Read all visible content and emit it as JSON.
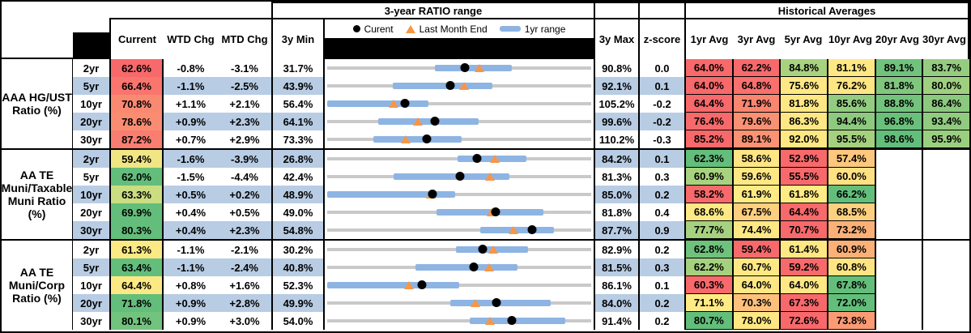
{
  "header": {
    "range_title": "3-year RATIO range",
    "hist_title": "Historical Averages",
    "cols": {
      "current": "Current",
      "wtd": "WTD Chg",
      "mtd": "MTD Chg",
      "min": "3y Min",
      "max": "3y Max",
      "z": "z-score"
    },
    "avg_cols": [
      "1yr Avg",
      "3yr Avg",
      "5yr Avg",
      "10yr Avg",
      "20yr Avg",
      "30yr Avg"
    ],
    "legend": [
      {
        "marker": "current-dot",
        "label": "Curent"
      },
      {
        "marker": "last-month-end-triangle",
        "label": "Last Month End"
      },
      {
        "marker": "one-year-range-bar",
        "label": "1yr range"
      }
    ]
  },
  "palette": {
    "stripe": "#B8CCE4",
    "range_bar": "#8EB4E3",
    "track": "#C9C9C9",
    "triangle": "#F79646",
    "dot": "#000000",
    "heat_red": "#F8696B",
    "heat_yellow": "#FFEB84",
    "heat_green": "#63BE7B"
  },
  "chart_data": {
    "type": "table",
    "title": "3-year RATIO range",
    "groups": [
      {
        "label_lines": [
          "AAA HG/UST",
          "Ratio (%)"
        ],
        "rows": [
          {
            "tenor": "2yr",
            "current": "62.6%",
            "current_color": "#F8696B",
            "wtd_chg": "-0.8%",
            "mtd_chg": "-3.1%",
            "min3y": "31.7%",
            "max3y": "90.8%",
            "z_score": "0.0",
            "striped": false,
            "range_plot": {
              "min": 31.7,
              "max": 90.8,
              "bar_low": 55.8,
              "bar_high": 73.1,
              "current": 62.6,
              "last_month_end": 65.7
            },
            "avgs": [
              {
                "v": "64.0%",
                "c": "#F8696B"
              },
              {
                "v": "62.2%",
                "c": "#F8696B"
              },
              {
                "v": "84.8%",
                "c": "#A9D27F"
              },
              {
                "v": "81.1%",
                "c": "#FFE884"
              },
              {
                "v": "89.1%",
                "c": "#70C27C"
              },
              {
                "v": "83.7%",
                "c": "#95CD80"
              }
            ]
          },
          {
            "tenor": "5yr",
            "current": "66.4%",
            "current_color": "#F9756E",
            "wtd_chg": "-1.1%",
            "mtd_chg": "-2.5%",
            "min3y": "43.9%",
            "max3y": "92.1%",
            "z_score": "0.1",
            "striped": true,
            "range_plot": {
              "min": 43.9,
              "max": 92.1,
              "bar_low": 55.9,
              "bar_high": 74.0,
              "current": 66.4,
              "last_month_end": 68.9
            },
            "avgs": [
              {
                "v": "64.0%",
                "c": "#F8696B"
              },
              {
                "v": "64.8%",
                "c": "#F9706D"
              },
              {
                "v": "75.6%",
                "c": "#FFE884"
              },
              {
                "v": "76.2%",
                "c": "#FEE683"
              },
              {
                "v": "81.8%",
                "c": "#80C77E"
              },
              {
                "v": "80.0%",
                "c": "#9ED080"
              }
            ]
          },
          {
            "tenor": "10yr",
            "current": "70.8%",
            "current_color": "#FA8972",
            "wtd_chg": "+1.1%",
            "mtd_chg": "+2.1%",
            "min3y": "56.4%",
            "max3y": "105.2%",
            "z_score": "-0.2",
            "striped": false,
            "range_plot": {
              "min": 56.4,
              "max": 105.2,
              "bar_low": 56.4,
              "bar_high": 75.1,
              "current": 70.8,
              "last_month_end": 68.7
            },
            "avgs": [
              {
                "v": "64.4%",
                "c": "#F8696B"
              },
              {
                "v": "71.9%",
                "c": "#FA8570"
              },
              {
                "v": "81.8%",
                "c": "#FFE884"
              },
              {
                "v": "85.6%",
                "c": "#92CC80"
              },
              {
                "v": "88.8%",
                "c": "#74C37D"
              },
              {
                "v": "86.4%",
                "c": "#8BC97F"
              }
            ]
          },
          {
            "tenor": "20yr",
            "current": "78.6%",
            "current_color": "#FA8C72",
            "wtd_chg": "+0.9%",
            "mtd_chg": "+2.3%",
            "min3y": "64.1%",
            "max3y": "99.6%",
            "z_score": "-0.2",
            "striped": true,
            "range_plot": {
              "min": 64.1,
              "max": 99.6,
              "bar_low": 71.0,
              "bar_high": 84.5,
              "current": 78.6,
              "last_month_end": 76.3
            },
            "avgs": [
              {
                "v": "76.4%",
                "c": "#F8696B"
              },
              {
                "v": "79.6%",
                "c": "#FA9173"
              },
              {
                "v": "86.3%",
                "c": "#FFE884"
              },
              {
                "v": "94.4%",
                "c": "#8DCA7F"
              },
              {
                "v": "96.8%",
                "c": "#6AC07B"
              },
              {
                "v": "93.4%",
                "c": "#90CB80"
              }
            ]
          },
          {
            "tenor": "30yr",
            "current": "87.2%",
            "current_color": "#F97D70",
            "wtd_chg": "+0.7%",
            "mtd_chg": "+2.9%",
            "min3y": "73.3%",
            "max3y": "110.2%",
            "z_score": "-0.3",
            "striped": false,
            "range_plot": {
              "min": 73.3,
              "max": 110.2,
              "bar_low": 79.7,
              "bar_high": 92.1,
              "current": 87.2,
              "last_month_end": 84.3
            },
            "avgs": [
              {
                "v": "85.2%",
                "c": "#F8696B"
              },
              {
                "v": "89.1%",
                "c": "#FA9273"
              },
              {
                "v": "92.0%",
                "c": "#FFE884"
              },
              {
                "v": "95.5%",
                "c": "#A5D17F"
              },
              {
                "v": "98.6%",
                "c": "#63BE7B"
              },
              {
                "v": "95.9%",
                "c": "#9BCF80"
              }
            ]
          }
        ]
      },
      {
        "label_lines": [
          "AA TE",
          "Muni/Taxable",
          "Muni Ratio",
          "(%)"
        ],
        "rows": [
          {
            "tenor": "2yr",
            "current": "59.4%",
            "current_color": "#F0E683",
            "wtd_chg": "-1.6%",
            "mtd_chg": "-3.9%",
            "min3y": "26.8%",
            "max3y": "84.2%",
            "z_score": "0.1",
            "striped": true,
            "range_plot": {
              "min": 26.8,
              "max": 84.2,
              "bar_low": 55.1,
              "bar_high": 70.2,
              "current": 59.4,
              "last_month_end": 63.3
            },
            "avgs": [
              {
                "v": "62.3%",
                "c": "#63BE7B"
              },
              {
                "v": "58.6%",
                "c": "#FFE583"
              },
              {
                "v": "52.9%",
                "c": "#F8696B"
              },
              {
                "v": "57.4%",
                "c": "#FDC77D"
              },
              {
                "v": "",
                "c": null
              },
              {
                "v": "",
                "c": null
              }
            ]
          },
          {
            "tenor": "5yr",
            "current": "62.0%",
            "current_color": "#63BE7B",
            "wtd_chg": "-1.5%",
            "mtd_chg": "-4.4%",
            "min3y": "42.4%",
            "max3y": "81.3%",
            "z_score": "0.3",
            "striped": false,
            "range_plot": {
              "min": 42.4,
              "max": 81.3,
              "bar_low": 52.2,
              "bar_high": 69.2,
              "current": 62.0,
              "last_month_end": 66.4
            },
            "avgs": [
              {
                "v": "60.9%",
                "c": "#A8D27F"
              },
              {
                "v": "59.6%",
                "c": "#FFE884"
              },
              {
                "v": "55.5%",
                "c": "#F8696B"
              },
              {
                "v": "60.0%",
                "c": "#FEE183"
              },
              {
                "v": "",
                "c": null
              },
              {
                "v": "",
                "c": null
              }
            ]
          },
          {
            "tenor": "10yr",
            "current": "63.3%",
            "current_color": "#CBDD81",
            "wtd_chg": "+0.5%",
            "mtd_chg": "+0.2%",
            "min3y": "48.9%",
            "max3y": "85.0%",
            "z_score": "0.2",
            "striped": true,
            "range_plot": {
              "min": 48.9,
              "max": 85.0,
              "bar_low": 48.9,
              "bar_high": 66.4,
              "current": 63.3,
              "last_month_end": 63.1
            },
            "avgs": [
              {
                "v": "58.2%",
                "c": "#F8696B"
              },
              {
                "v": "61.9%",
                "c": "#FFEB84"
              },
              {
                "v": "61.8%",
                "c": "#FFEB84"
              },
              {
                "v": "66.2%",
                "c": "#63BE7B"
              },
              {
                "v": "",
                "c": null
              },
              {
                "v": "",
                "c": null
              }
            ]
          },
          {
            "tenor": "20yr",
            "current": "69.9%",
            "current_color": "#63BE7B",
            "wtd_chg": "+0.4%",
            "mtd_chg": "+0.5%",
            "min3y": "49.0%",
            "max3y": "81.8%",
            "z_score": "0.4",
            "striped": false,
            "range_plot": {
              "min": 49.0,
              "max": 81.8,
              "bar_low": 62.6,
              "bar_high": 75.9,
              "current": 69.9,
              "last_month_end": 69.4
            },
            "avgs": [
              {
                "v": "68.6%",
                "c": "#FFE984"
              },
              {
                "v": "67.5%",
                "c": "#FDCF7F"
              },
              {
                "v": "64.4%",
                "c": "#F8696B"
              },
              {
                "v": "68.5%",
                "c": "#FDD07F"
              },
              {
                "v": "",
                "c": null
              },
              {
                "v": "",
                "c": null
              }
            ]
          },
          {
            "tenor": "30yr",
            "current": "80.3%",
            "current_color": "#63BE7B",
            "wtd_chg": "+0.4%",
            "mtd_chg": "+2.3%",
            "min3y": "54.8%",
            "max3y": "87.7%",
            "z_score": "0.9",
            "striped": true,
            "range_plot": {
              "min": 54.8,
              "max": 87.7,
              "bar_low": 73.9,
              "bar_high": 83.1,
              "current": 80.3,
              "last_month_end": 78.0
            },
            "avgs": [
              {
                "v": "77.7%",
                "c": "#A6D17F"
              },
              {
                "v": "74.4%",
                "c": "#FFE884"
              },
              {
                "v": "70.7%",
                "c": "#F8696B"
              },
              {
                "v": "73.2%",
                "c": "#FBB078"
              },
              {
                "v": "",
                "c": null
              },
              {
                "v": "",
                "c": null
              }
            ]
          }
        ]
      },
      {
        "label_lines": [
          "AA TE",
          "Muni/Corp",
          "Ratio (%)"
        ],
        "rows": [
          {
            "tenor": "2yr",
            "current": "61.3%",
            "current_color": "#FBE983",
            "wtd_chg": "-1.1%",
            "mtd_chg": "-2.1%",
            "min3y": "30.2%",
            "max3y": "82.9%",
            "z_score": "0.2",
            "striped": false,
            "range_plot": {
              "min": 30.2,
              "max": 82.9,
              "bar_low": 55.9,
              "bar_high": 70.3,
              "current": 61.3,
              "last_month_end": 63.4
            },
            "avgs": [
              {
                "v": "62.8%",
                "c": "#6FC27C"
              },
              {
                "v": "59.4%",
                "c": "#F8696B"
              },
              {
                "v": "61.4%",
                "c": "#FFE884"
              },
              {
                "v": "60.9%",
                "c": "#FBB078"
              },
              {
                "v": "",
                "c": null
              },
              {
                "v": "",
                "c": null
              }
            ]
          },
          {
            "tenor": "5yr",
            "current": "63.4%",
            "current_color": "#63BE7B",
            "wtd_chg": "-1.1%",
            "mtd_chg": "-2.4%",
            "min3y": "40.8%",
            "max3y": "81.5%",
            "z_score": "0.3",
            "striped": true,
            "range_plot": {
              "min": 40.8,
              "max": 81.5,
              "bar_low": 54.4,
              "bar_high": 70.1,
              "current": 63.4,
              "last_month_end": 65.8
            },
            "avgs": [
              {
                "v": "62.2%",
                "c": "#A5D17F"
              },
              {
                "v": "60.7%",
                "c": "#FFE884"
              },
              {
                "v": "59.2%",
                "c": "#F8696B"
              },
              {
                "v": "60.8%",
                "c": "#FEE483"
              },
              {
                "v": "",
                "c": null
              },
              {
                "v": "",
                "c": null
              }
            ]
          },
          {
            "tenor": "10yr",
            "current": "64.4%",
            "current_color": "#FDE984",
            "wtd_chg": "+0.8%",
            "mtd_chg": "+1.6%",
            "min3y": "52.3%",
            "max3y": "86.1%",
            "z_score": "0.1",
            "striped": false,
            "range_plot": {
              "min": 52.3,
              "max": 86.1,
              "bar_low": 52.3,
              "bar_high": 69.2,
              "current": 64.4,
              "last_month_end": 62.8
            },
            "avgs": [
              {
                "v": "60.3%",
                "c": "#F8696B"
              },
              {
                "v": "64.0%",
                "c": "#FFE884"
              },
              {
                "v": "64.0%",
                "c": "#FFE884"
              },
              {
                "v": "67.8%",
                "c": "#63BE7B"
              },
              {
                "v": "",
                "c": null
              },
              {
                "v": "",
                "c": null
              }
            ]
          },
          {
            "tenor": "20yr",
            "current": "71.8%",
            "current_color": "#63BE7B",
            "wtd_chg": "+0.9%",
            "mtd_chg": "+2.8%",
            "min3y": "49.9%",
            "max3y": "84.0%",
            "z_score": "0.2",
            "striped": true,
            "range_plot": {
              "min": 49.9,
              "max": 84.0,
              "bar_low": 65.8,
              "bar_high": 78.8,
              "current": 71.8,
              "last_month_end": 69.0
            },
            "avgs": [
              {
                "v": "71.1%",
                "c": "#FFEB84"
              },
              {
                "v": "70.3%",
                "c": "#FDC17C"
              },
              {
                "v": "67.3%",
                "c": "#F8696B"
              },
              {
                "v": "72.0%",
                "c": "#63BE7B"
              },
              {
                "v": "",
                "c": null
              },
              {
                "v": "",
                "c": null
              }
            ]
          },
          {
            "tenor": "30yr",
            "current": "80.1%",
            "current_color": "#72C37D",
            "wtd_chg": "+0.9%",
            "mtd_chg": "+3.0%",
            "min3y": "54.0%",
            "max3y": "91.4%",
            "z_score": "0.2",
            "striped": false,
            "range_plot": {
              "min": 54.0,
              "max": 91.4,
              "bar_low": 74.2,
              "bar_high": 87.7,
              "current": 80.1,
              "last_month_end": 77.1
            },
            "avgs": [
              {
                "v": "80.7%",
                "c": "#63BE7B"
              },
              {
                "v": "78.0%",
                "c": "#FFE884"
              },
              {
                "v": "72.6%",
                "c": "#F8696B"
              },
              {
                "v": "73.8%",
                "c": "#FA9B74"
              },
              {
                "v": "",
                "c": null
              },
              {
                "v": "",
                "c": null
              }
            ]
          }
        ]
      }
    ]
  }
}
